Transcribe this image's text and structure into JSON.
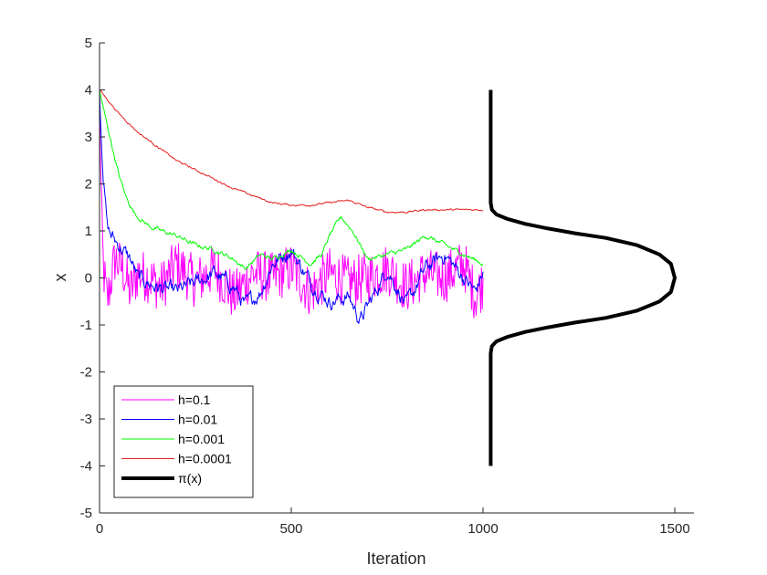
{
  "chart_data": {
    "type": "line",
    "title": "",
    "xlabel": "Iteration",
    "ylabel": "x",
    "xlim": [
      0,
      1550
    ],
    "ylim": [
      -5,
      5
    ],
    "xticks": [
      0,
      500,
      1000,
      1500
    ],
    "yticks": [
      -5,
      -4,
      -3,
      -2,
      -1,
      0,
      1,
      2,
      3,
      4,
      5
    ],
    "grid": false,
    "legend_position": "bottom-left",
    "series": [
      {
        "name": "h=0.1",
        "color": "#ff00ff",
        "style": "noisy",
        "x": [
          0,
          5,
          10,
          20,
          40,
          60,
          80,
          100,
          130,
          160,
          200,
          250,
          300,
          350,
          400,
          450,
          500,
          550,
          600,
          650,
          700,
          750,
          800,
          850,
          900,
          950,
          980,
          1000
        ],
        "y": [
          3.9,
          1.4,
          0.2,
          -0.5,
          0.4,
          0.2,
          -0.3,
          0.1,
          0.0,
          -0.2,
          0.3,
          -0.1,
          0.2,
          -0.4,
          0.1,
          0.0,
          0.2,
          -0.3,
          0.1,
          -0.1,
          0.0,
          0.2,
          -0.2,
          0.1,
          0.0,
          0.3,
          -0.4,
          -0.1
        ],
        "amplitude": 0.55
      },
      {
        "name": "h=0.01",
        "color": "#0000ff",
        "style": "noisy",
        "x": [
          0,
          5,
          10,
          20,
          30,
          50,
          80,
          100,
          150,
          200,
          250,
          300,
          350,
          380,
          420,
          450,
          500,
          550,
          600,
          650,
          680,
          720,
          750,
          800,
          850,
          900,
          950,
          980,
          1000
        ],
        "y": [
          4.0,
          3.0,
          2.2,
          1.1,
          0.9,
          0.7,
          0.4,
          0.0,
          -0.2,
          -0.3,
          -0.1,
          0.1,
          -0.2,
          -0.6,
          -0.3,
          0.3,
          0.6,
          -0.1,
          -0.5,
          -0.4,
          -0.9,
          -0.3,
          0.2,
          -0.6,
          0.2,
          0.5,
          0.0,
          -0.3,
          0.1
        ],
        "amplitude": 0.2
      },
      {
        "name": "h=0.001",
        "color": "#00ff00",
        "style": "noisy",
        "x": [
          0,
          10,
          30,
          50,
          70,
          90,
          100,
          130,
          160,
          200,
          250,
          300,
          350,
          380,
          420,
          450,
          500,
          550,
          580,
          600,
          630,
          660,
          700,
          750,
          800,
          850,
          900,
          950,
          1000
        ],
        "y": [
          4.0,
          3.6,
          2.9,
          2.2,
          1.7,
          1.4,
          1.3,
          1.1,
          1.0,
          0.9,
          0.7,
          0.6,
          0.4,
          0.2,
          0.5,
          0.4,
          0.6,
          0.3,
          0.5,
          0.9,
          1.3,
          1.0,
          0.4,
          0.5,
          0.6,
          0.9,
          0.7,
          0.5,
          0.3
        ],
        "amplitude": 0.06
      },
      {
        "name": "h=0.0001",
        "color": "#e61e1e",
        "style": "noisy",
        "x": [
          0,
          20,
          50,
          100,
          150,
          200,
          250,
          300,
          350,
          400,
          450,
          500,
          550,
          600,
          650,
          700,
          750,
          800,
          850,
          900,
          950,
          1000
        ],
        "y": [
          4.0,
          3.8,
          3.5,
          3.1,
          2.8,
          2.5,
          2.3,
          2.1,
          1.9,
          1.75,
          1.6,
          1.55,
          1.55,
          1.6,
          1.65,
          1.5,
          1.4,
          1.4,
          1.45,
          1.45,
          1.45,
          1.45
        ],
        "amplitude": 0.025
      },
      {
        "name": "π(x)",
        "color": "#000000",
        "style": "smooth",
        "x": [
          1020,
          1020,
          1020,
          1023,
          1035,
          1065,
          1110,
          1170,
          1240,
          1320,
          1400,
          1460,
          1490,
          1500,
          1490,
          1460,
          1400,
          1320,
          1240,
          1170,
          1110,
          1065,
          1035,
          1023,
          1020,
          1020,
          1020
        ],
        "y": [
          -4.0,
          -2.0,
          -1.6,
          -1.45,
          -1.35,
          -1.25,
          -1.15,
          -1.05,
          -0.95,
          -0.85,
          -0.7,
          -0.5,
          -0.3,
          0.0,
          0.3,
          0.5,
          0.7,
          0.85,
          0.95,
          1.05,
          1.15,
          1.25,
          1.35,
          1.45,
          1.6,
          2.0,
          4.0
        ],
        "amplitude": 0
      }
    ]
  }
}
